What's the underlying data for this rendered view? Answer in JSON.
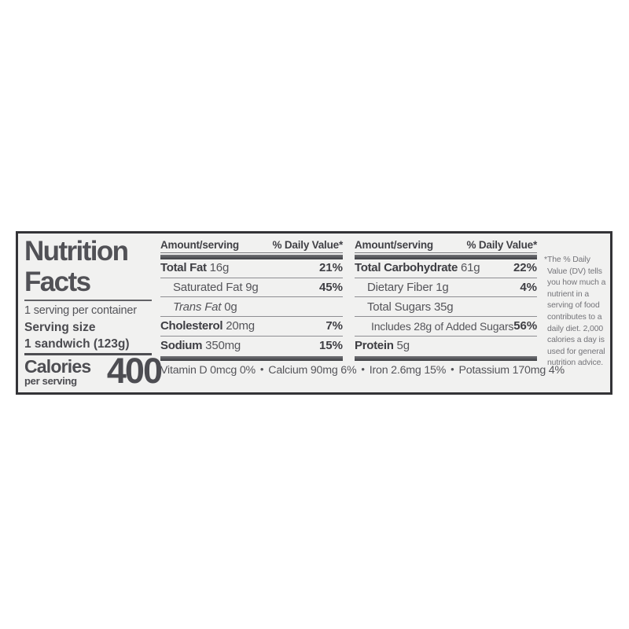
{
  "label": {
    "title_line1": "Nutrition",
    "title_line2": "Facts",
    "servings_per_container": "1 serving per container",
    "serving_size_label": "Serving size",
    "serving_size_value": "1 sandwich (123g)",
    "calories_label": "Calories",
    "calories_sublabel": "per serving",
    "calories_value": "400",
    "columns": [
      {
        "header": {
          "amount": "Amount/serving",
          "daily_value": "% Daily Value*"
        },
        "rows": [
          {
            "name": "Total Fat",
            "amount": "16g",
            "dv": "21%"
          },
          {
            "name": "Saturated Fat",
            "amount": "9g",
            "dv": "45%"
          },
          {
            "name": "Trans Fat",
            "amount": "0g",
            "dv": ""
          },
          {
            "name": "Cholesterol",
            "amount": "20mg",
            "dv": "7%"
          },
          {
            "name": "Sodium",
            "amount": "350mg",
            "dv": "15%"
          }
        ]
      },
      {
        "header": {
          "amount": "Amount/serving",
          "daily_value": "% Daily Value*"
        },
        "rows": [
          {
            "name": "Total Carbohydrate",
            "amount": "61g",
            "dv": "22%"
          },
          {
            "name": "Dietary Fiber",
            "amount": "1g",
            "dv": "4%"
          },
          {
            "name": "Total Sugars",
            "amount": "35g",
            "dv": ""
          },
          {
            "name": "Includes 28g of Added Sugars",
            "amount": "",
            "dv": "56%"
          },
          {
            "name": "Protein",
            "amount": "5g",
            "dv": ""
          }
        ]
      }
    ],
    "micronutrients": {
      "separator": "•",
      "items": [
        "Vitamin D 0mcg 0%",
        "Calcium 90mg 6%",
        "Iron 2.6mg 15%",
        "Potassium 170mg 4%"
      ]
    },
    "footnote": "*The % Daily Value (DV) tells you how much a nutrient in a serving of food contributes to a daily diet. 2,000 calories a day is used for general nutrition advice.",
    "colors": {
      "border": "#333337",
      "background": "#f1f1f0",
      "text": "#47474c"
    }
  }
}
